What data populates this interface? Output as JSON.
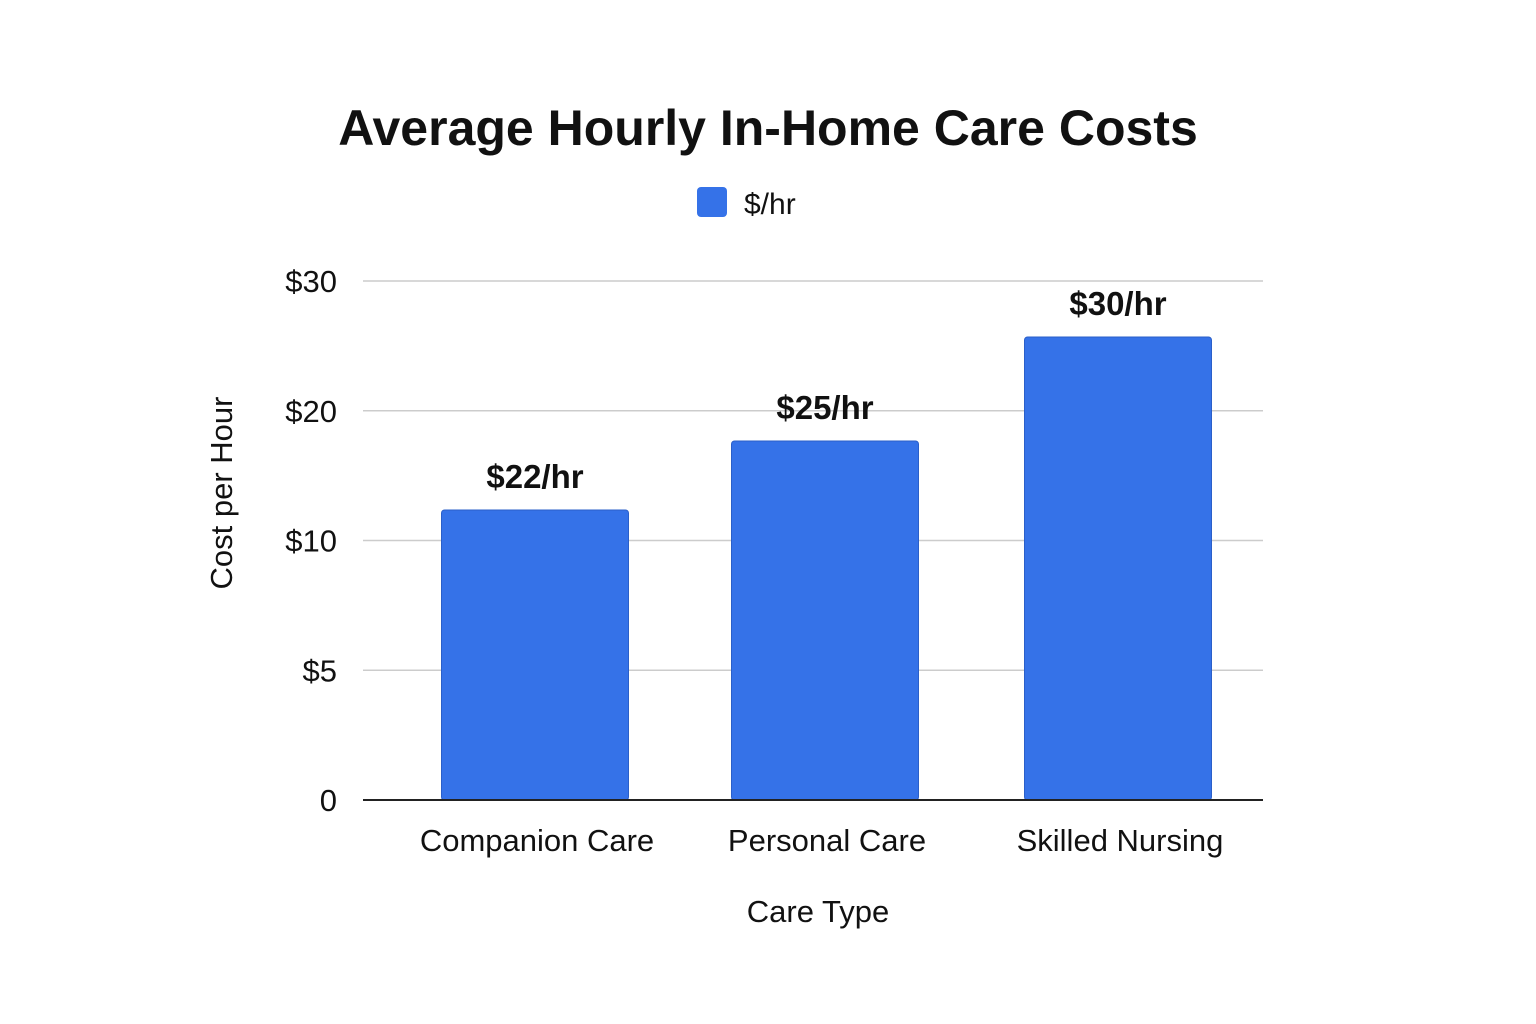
{
  "chart_data": {
    "type": "bar",
    "title": "Average Hourly In-Home Care Costs",
    "xlabel": "Care Type",
    "ylabel": "Cost per Hour",
    "legend": {
      "position": "top",
      "entries": [
        "$/hr"
      ]
    },
    "categories": [
      "Companion Care",
      "Personal Care",
      "Skilled Nursing"
    ],
    "series": [
      {
        "name": "$/hr",
        "color": "#3572e8",
        "values": [
          22,
          25,
          30
        ],
        "labels": [
          "$22/hr",
          "$25/hr",
          "$30/hr"
        ]
      }
    ],
    "y_ticks": [
      {
        "label": "0",
        "value": 0
      },
      {
        "label": "$5",
        "value": 5
      },
      {
        "label": "$10",
        "value": 10
      },
      {
        "label": "$20",
        "value": 20
      },
      {
        "label": "$30",
        "value": 30
      }
    ],
    "grid": true
  }
}
